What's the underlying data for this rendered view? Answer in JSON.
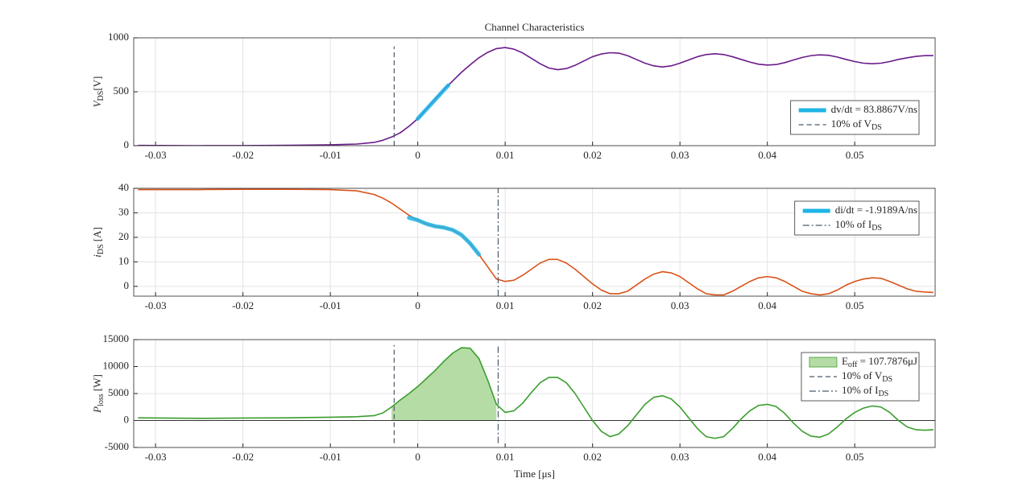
{
  "chart_data": [
    {
      "type": "line",
      "title": "Channel Characteristics",
      "ylabel": [
        "V",
        "DS",
        "[V]"
      ],
      "xlim": [
        -0.0325,
        0.0592
      ],
      "xticks": [
        -0.03,
        -0.02,
        -0.01,
        0,
        0.01,
        0.02,
        0.03,
        0.04,
        0.05
      ],
      "ylim": [
        0,
        1000
      ],
      "yticks": [
        0,
        500,
        1000
      ],
      "grid": true,
      "legend": "lower right",
      "series": [
        {
          "color": "#6a1b8a",
          "style": "solid",
          "x": [
            -0.032,
            -0.025,
            -0.02,
            -0.015,
            -0.01,
            -0.007,
            -0.005,
            -0.004,
            -0.003,
            -0.002,
            -0.001,
            0,
            0.001,
            0.002,
            0.003,
            0.004,
            0.005,
            0.006,
            0.007,
            0.008,
            0.009,
            0.01,
            0.011,
            0.012,
            0.013,
            0.014,
            0.015,
            0.016,
            0.017,
            0.018,
            0.019,
            0.02,
            0.021,
            0.022,
            0.023,
            0.024,
            0.025,
            0.026,
            0.027,
            0.028,
            0.029,
            0.03,
            0.031,
            0.032,
            0.033,
            0.034,
            0.035,
            0.036,
            0.037,
            0.038,
            0.039,
            0.04,
            0.041,
            0.042,
            0.043,
            0.044,
            0.045,
            0.046,
            0.047,
            0.048,
            0.049,
            0.05,
            0.051,
            0.052,
            0.053,
            0.054,
            0.055,
            0.056,
            0.057,
            0.058,
            0.059
          ],
          "values": [
            2,
            0,
            1,
            3,
            8,
            15,
            30,
            50,
            80,
            120,
            180,
            250,
            340,
            430,
            520,
            600,
            680,
            750,
            815,
            865,
            900,
            910,
            895,
            860,
            810,
            760,
            720,
            705,
            715,
            745,
            785,
            825,
            850,
            862,
            858,
            835,
            800,
            765,
            740,
            730,
            740,
            765,
            795,
            825,
            845,
            852,
            845,
            825,
            800,
            775,
            755,
            748,
            752,
            770,
            795,
            818,
            835,
            842,
            838,
            822,
            800,
            780,
            765,
            760,
            765,
            780,
            800,
            815,
            828,
            835,
            835
          ]
        },
        {
          "name": [
            "dv/dt = 83.8867V/ns"
          ],
          "color": "#1eb4e6",
          "style": "thick",
          "x": [
            0,
            0.0035
          ],
          "values": [
            250,
            560
          ]
        },
        {
          "name": [
            "10% of V",
            "DS"
          ],
          "color": "#4a5a6a",
          "style": "dashed",
          "x": [
            -0.0027,
            -0.0027
          ],
          "values": [
            0,
            920
          ]
        }
      ]
    },
    {
      "type": "line",
      "ylabel": [
        "i",
        "DS",
        " [A]"
      ],
      "xlim": [
        -0.0325,
        0.0592
      ],
      "xticks": [
        -0.03,
        -0.02,
        -0.01,
        0,
        0.01,
        0.02,
        0.03,
        0.04,
        0.05
      ],
      "ylim": [
        -4,
        40
      ],
      "yticks": [
        0,
        10,
        20,
        30,
        40
      ],
      "grid": true,
      "legend": "upper right",
      "series": [
        {
          "color": "#d95319",
          "style": "solid",
          "x": [
            -0.032,
            -0.025,
            -0.02,
            -0.015,
            -0.01,
            -0.007,
            -0.005,
            -0.004,
            -0.003,
            -0.002,
            -0.001,
            0,
            0.001,
            0.002,
            0.003,
            0.004,
            0.005,
            0.006,
            0.007,
            0.008,
            0.009,
            0.01,
            0.011,
            0.012,
            0.013,
            0.014,
            0.015,
            0.016,
            0.017,
            0.018,
            0.019,
            0.02,
            0.021,
            0.022,
            0.023,
            0.024,
            0.025,
            0.026,
            0.027,
            0.028,
            0.029,
            0.03,
            0.031,
            0.032,
            0.033,
            0.034,
            0.035,
            0.036,
            0.037,
            0.038,
            0.039,
            0.04,
            0.041,
            0.042,
            0.043,
            0.044,
            0.045,
            0.046,
            0.047,
            0.048,
            0.049,
            0.05,
            0.051,
            0.052,
            0.053,
            0.054,
            0.055,
            0.056,
            0.057,
            0.058,
            0.059
          ],
          "values": [
            39.5,
            39.5,
            39.6,
            39.6,
            39.5,
            39,
            37.5,
            36,
            34,
            31.5,
            29,
            27,
            25.5,
            24.5,
            24,
            23,
            21,
            17.5,
            13,
            8,
            3,
            2,
            2.5,
            4.5,
            7,
            9.5,
            11,
            11,
            9.5,
            7,
            4,
            1,
            -1.5,
            -3,
            -3,
            -2,
            0.5,
            3,
            5,
            6,
            5.5,
            4,
            1.5,
            -1,
            -3,
            -3.5,
            -3.5,
            -2,
            0,
            2,
            3.5,
            4,
            3.5,
            2,
            0,
            -2,
            -3,
            -3.5,
            -3,
            -1.5,
            0.5,
            2,
            3,
            3.5,
            3.3,
            2,
            0.5,
            -1,
            -2,
            -2.3,
            -2.5
          ]
        },
        {
          "name": [
            "di/dt = -1.9189A/ns"
          ],
          "color": "#1eb4e6",
          "style": "thick",
          "x": [
            -0.001,
            0,
            0.001,
            0.002,
            0.003,
            0.004,
            0.005,
            0.006,
            0.007
          ],
          "values": [
            28,
            27,
            25.5,
            24.5,
            24,
            23,
            21,
            17.5,
            13
          ]
        },
        {
          "name": [
            "10% of I",
            "DS"
          ],
          "color": "#4a5a6a",
          "style": "dashdot",
          "x": [
            0.0092,
            0.0092
          ],
          "values": [
            -4,
            40
          ]
        }
      ]
    },
    {
      "type": "line",
      "ylabel": [
        "P",
        "loss",
        " [W]"
      ],
      "xlabel": "Time [μs]",
      "xlim": [
        -0.0325,
        0.0592
      ],
      "xticks": [
        -0.03,
        -0.02,
        -0.01,
        0,
        0.01,
        0.02,
        0.03,
        0.04,
        0.05
      ],
      "ylim": [
        -5000,
        15000
      ],
      "yticks": [
        -5000,
        0,
        5000,
        10000,
        15000
      ],
      "grid": true,
      "legend": "upper right",
      "zero_line": true,
      "series": [
        {
          "name": [
            "E",
            "off",
            " = 107.7876μJ"
          ],
          "color": "#b5dca5",
          "style": "area",
          "x": [
            -0.003,
            -0.002,
            -0.001,
            0,
            0.001,
            0.002,
            0.003,
            0.004,
            0.005,
            0.006,
            0.007,
            0.008,
            0.009
          ],
          "values": [
            2500,
            3800,
            5000,
            6300,
            7800,
            9300,
            11000,
            12500,
            13500,
            13400,
            11500,
            7500,
            3000
          ]
        },
        {
          "color": "#3a9e2e",
          "style": "solid",
          "x": [
            -0.032,
            -0.025,
            -0.02,
            -0.015,
            -0.01,
            -0.007,
            -0.005,
            -0.004,
            -0.003,
            -0.002,
            -0.001,
            0,
            0.001,
            0.002,
            0.003,
            0.004,
            0.005,
            0.006,
            0.007,
            0.008,
            0.009,
            0.01,
            0.011,
            0.012,
            0.013,
            0.014,
            0.015,
            0.016,
            0.017,
            0.018,
            0.019,
            0.02,
            0.021,
            0.022,
            0.023,
            0.024,
            0.025,
            0.026,
            0.027,
            0.028,
            0.029,
            0.03,
            0.031,
            0.032,
            0.033,
            0.034,
            0.035,
            0.036,
            0.037,
            0.038,
            0.039,
            0.04,
            0.041,
            0.042,
            0.043,
            0.044,
            0.045,
            0.046,
            0.047,
            0.048,
            0.049,
            0.05,
            0.051,
            0.052,
            0.053,
            0.054,
            0.055,
            0.056,
            0.057,
            0.058,
            0.059
          ],
          "values": [
            500,
            400,
            450,
            500,
            600,
            700,
            900,
            1400,
            2500,
            3800,
            5000,
            6300,
            7800,
            9300,
            11000,
            12500,
            13500,
            13400,
            11500,
            7500,
            3000,
            1500,
            1800,
            3200,
            5200,
            7000,
            8000,
            8000,
            7000,
            5000,
            2500,
            0,
            -2000,
            -3000,
            -2500,
            -1000,
            1000,
            3000,
            4300,
            4600,
            4000,
            2500,
            500,
            -1500,
            -3000,
            -3300,
            -3000,
            -1500,
            300,
            1800,
            2800,
            3000,
            2600,
            1300,
            -500,
            -2000,
            -2900,
            -3100,
            -2500,
            -1200,
            300,
            1500,
            2300,
            2700,
            2500,
            1500,
            0,
            -1200,
            -1700,
            -1800,
            -1700
          ]
        },
        {
          "name": [
            "10% of V",
            "DS"
          ],
          "color": "#4a5a6a",
          "style": "dashed",
          "x": [
            -0.0027,
            -0.0027
          ],
          "values": [
            -4200,
            14000
          ]
        },
        {
          "name": [
            "10% of I",
            "DS"
          ],
          "color": "#4a5a6a",
          "style": "dashdot",
          "x": [
            0.0092,
            0.0092
          ],
          "values": [
            -4200,
            14000
          ]
        }
      ]
    }
  ]
}
